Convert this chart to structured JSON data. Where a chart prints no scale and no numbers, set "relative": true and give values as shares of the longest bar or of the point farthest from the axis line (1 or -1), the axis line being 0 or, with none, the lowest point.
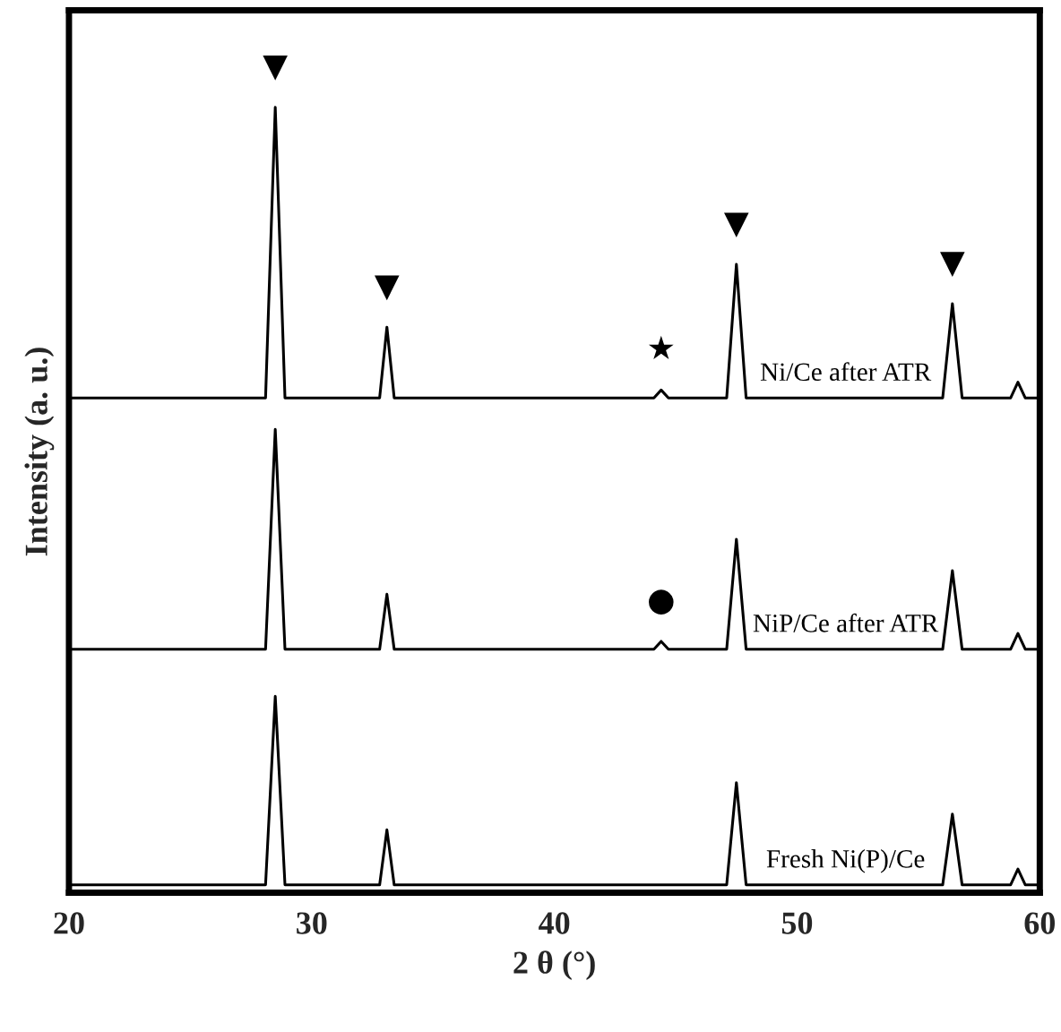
{
  "chart_data": {
    "type": "line",
    "relative": true,
    "xlabel": "2 θ (°)",
    "ylabel": "Intensity (a. u.)",
    "x": [
      20,
      27,
      28.1,
      28.5,
      28.9,
      32.8,
      33.1,
      33.4,
      44.1,
      44.4,
      44.7,
      47.1,
      47.5,
      47.9,
      56.0,
      56.4,
      56.8,
      58.8,
      59.1,
      59.4,
      60
    ],
    "xlim": [
      20,
      60
    ],
    "xticks": [
      20,
      30,
      40,
      50,
      60
    ],
    "tick_labels": "x",
    "grid": false,
    "legend": false,
    "marker": "none",
    "line_style": "solid",
    "series": [
      {
        "name": "Ni/Ce after ATR",
        "color": "#000000",
        "values": [
          0.63,
          0.63,
          0.63,
          1.0,
          0.63,
          0.63,
          0.72,
          0.63,
          0.63,
          0.64,
          0.63,
          0.63,
          0.8,
          0.63,
          0.63,
          0.75,
          0.63,
          0.63,
          0.65,
          0.63,
          0.63
        ]
      },
      {
        "name": "NiP/Ce after ATR",
        "color": "#000000",
        "values": [
          0.31,
          0.31,
          0.31,
          0.59,
          0.31,
          0.31,
          0.38,
          0.31,
          0.31,
          0.32,
          0.31,
          0.31,
          0.45,
          0.31,
          0.31,
          0.41,
          0.31,
          0.31,
          0.33,
          0.31,
          0.31
        ]
      },
      {
        "name": "Fresh Ni(P)/Ce",
        "color": "#000000",
        "values": [
          0.01,
          0.01,
          0.01,
          0.25,
          0.01,
          0.01,
          0.08,
          0.01,
          0.01,
          0.01,
          0.01,
          0.01,
          0.14,
          0.01,
          0.01,
          0.1,
          0.01,
          0.01,
          0.03,
          0.01,
          0.01
        ]
      }
    ],
    "annotations": [
      {
        "text": "▼",
        "x": 28.5,
        "y": 1.0
      },
      {
        "text": "▼",
        "x": 33.1,
        "y": 0.72
      },
      {
        "text": "▼",
        "x": 47.5,
        "y": 0.8
      },
      {
        "text": "▼",
        "x": 56.4,
        "y": 0.75
      },
      {
        "text": "★",
        "x": 44.4,
        "y": 0.64
      },
      {
        "text": "●",
        "x": 44.4,
        "y": 0.32
      }
    ]
  }
}
